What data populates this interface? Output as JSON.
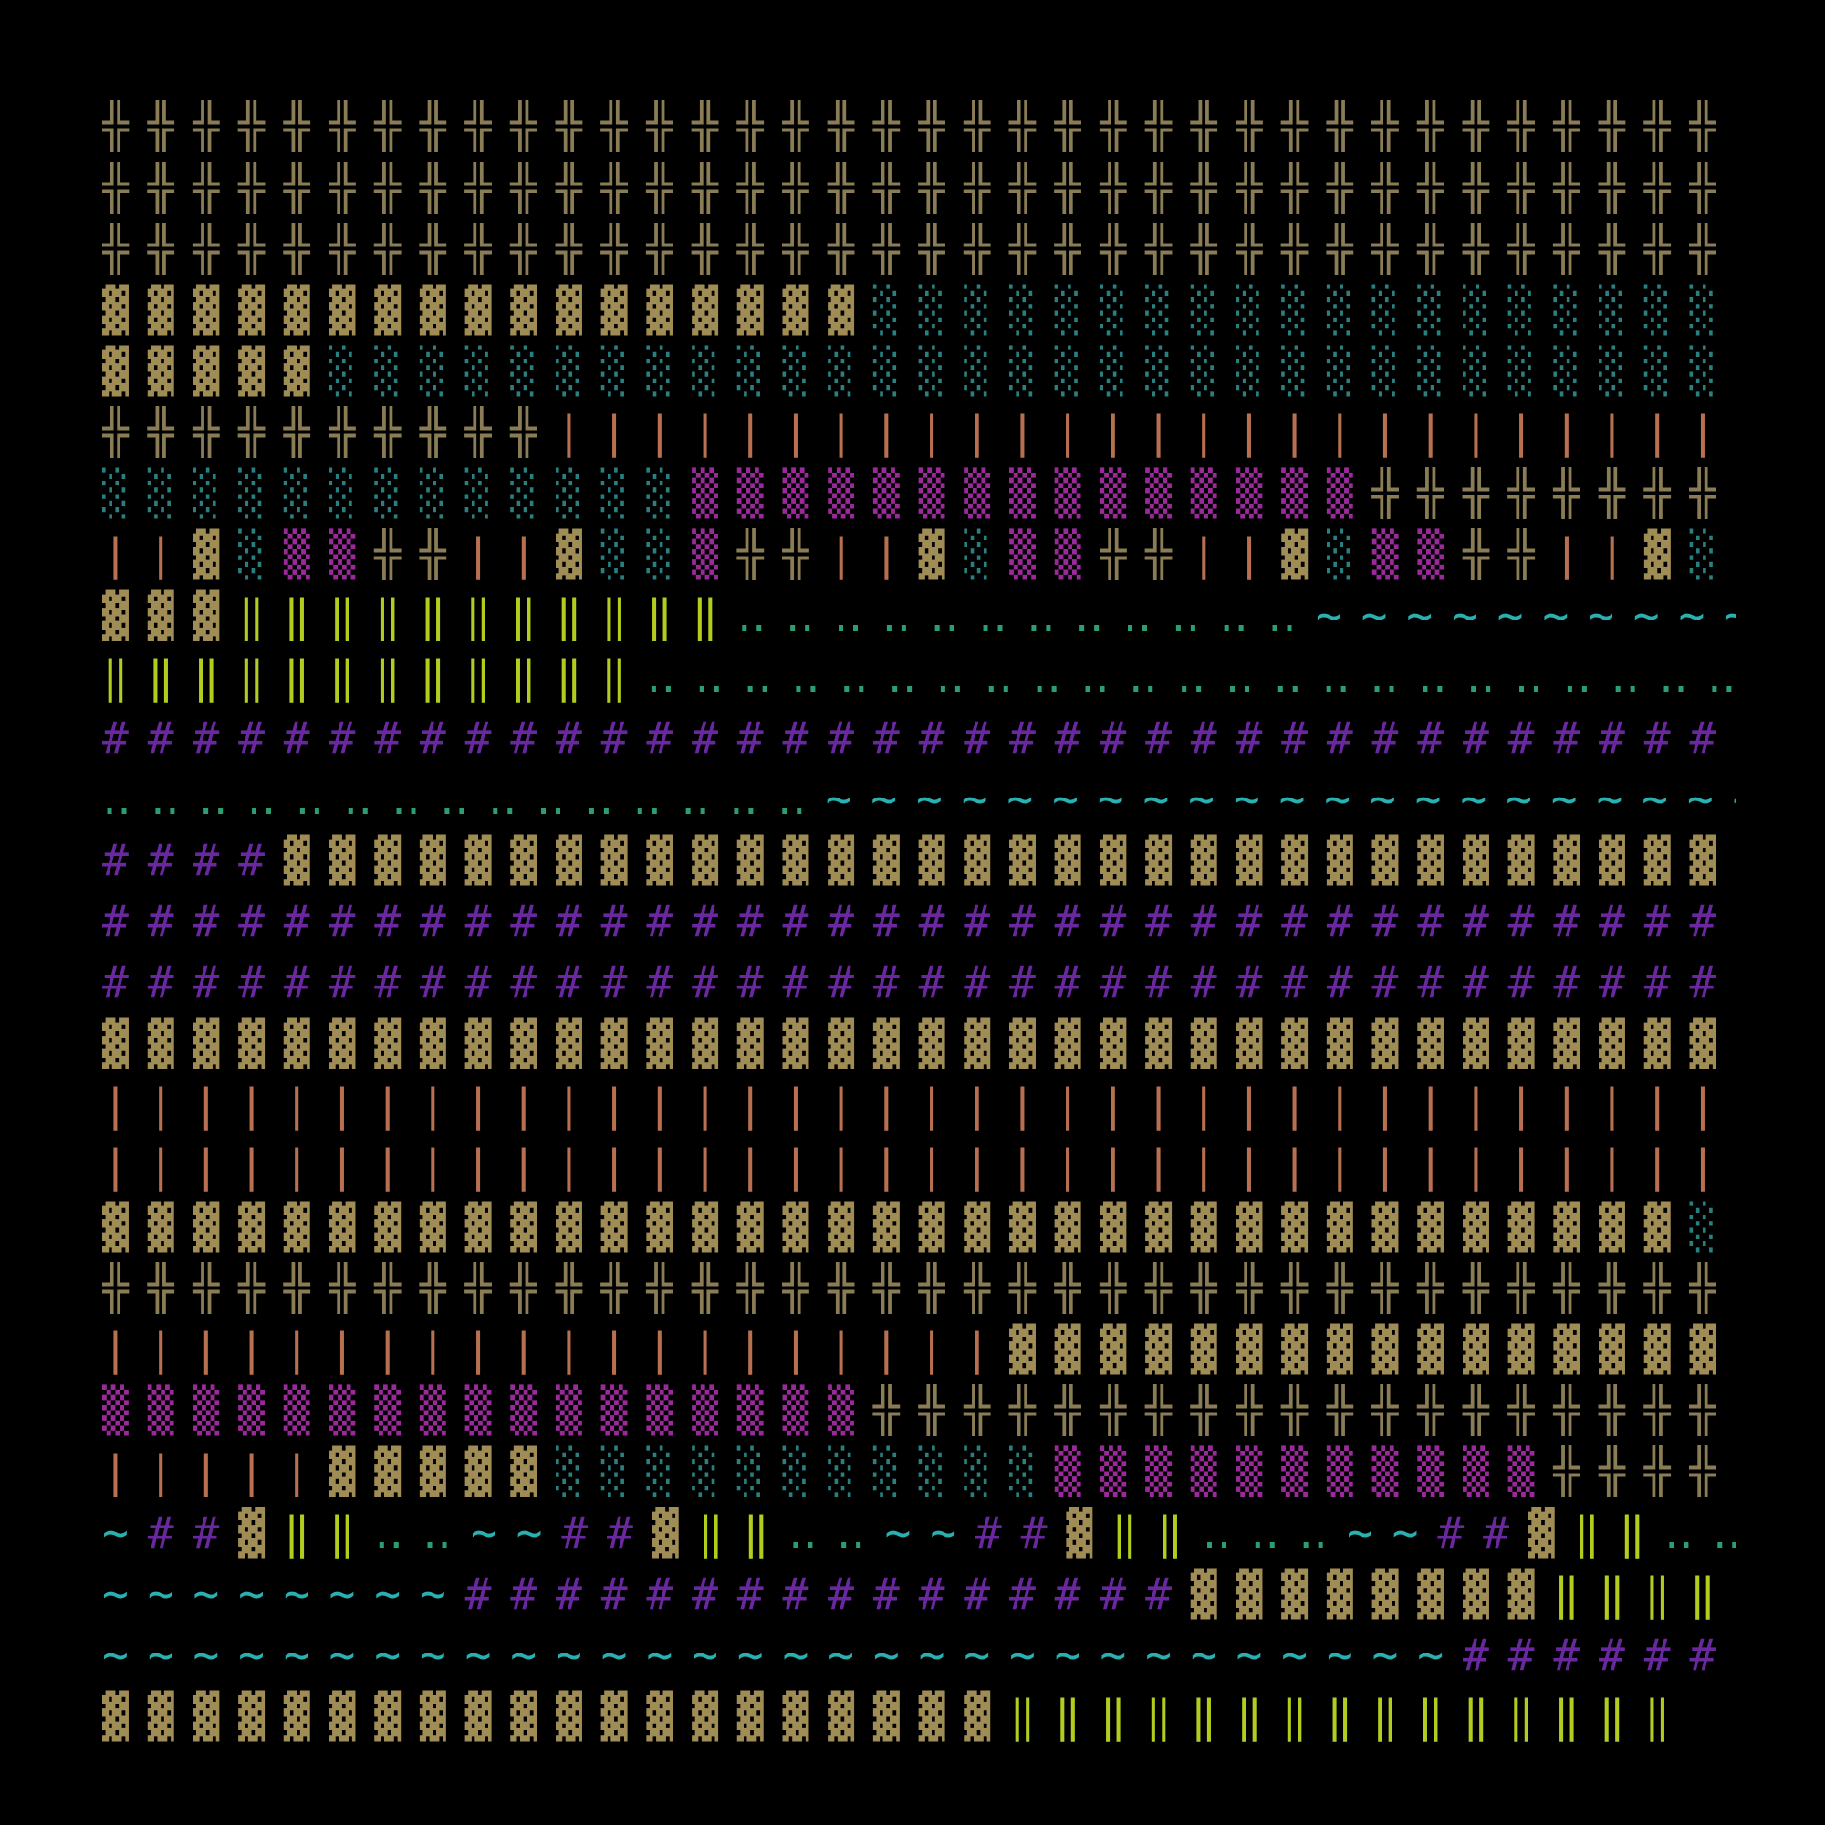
{
  "palette": {
    "╬": "#8a7d55",
    "▓": "#a08c55",
    "░": "#2a8080",
    "▒": "#9a2a9a",
    "|": "#b87050",
    "‖": "#b4cc1e",
    "‥": "#2aa070",
    "#": "#6a28a0",
    "~": "#2ab0b0"
  },
  "rows": [
    [
      "╬╬╬╬╬╬╬╬╬╬╬╬╬╬╬╬╬╬╬╬╬╬╬╬╬╬╬╬╬╬╬╬╬╬╬╬"
    ],
    [
      "╬╬╬╬╬╬╬╬╬╬╬╬╬╬╬╬╬╬╬╬╬╬╬╬╬╬╬╬╬╬╬╬╬╬╬╬"
    ],
    [
      "╬╬╬╬╬╬╬╬╬╬╬╬╬╬╬╬╬╬╬╬╬╬╬╬╬╬╬╬╬╬╬╬╬╬╬╬"
    ],
    [
      "▓▓▓▓▓▓▓▓▓▓▓▓▓▓▓▓▓",
      "░░░░░░░░░░░░░░░░░░░"
    ],
    [
      "▓▓▓▓▓",
      "░░░░░░░░░░░░░░░░░░░░░░░░░░░░░░░"
    ],
    [
      "╬╬╬╬╬╬╬╬╬╬",
      "||||||||||||||||||||||||||"
    ],
    [
      "░░░░░░░░░░░░░",
      "▒▒▒▒▒▒▒▒▒▒▒▒▒▒▒",
      "╬╬╬╬╬╬╬╬"
    ],
    [
      "||",
      "▓",
      "░",
      "▒▒",
      "╬╬",
      "||",
      "▓",
      "░░",
      "▒",
      "╬╬",
      "||",
      "▓",
      "░",
      "▒▒",
      "╬╬",
      "||",
      "▓",
      "░",
      "▒▒",
      "╬╬",
      "||",
      "▓",
      "░"
    ],
    [
      "▓▓▓",
      "‖‖‖‖‖‖‖‖‖‖‖",
      "‥‥‥‥‥‥‥‥‥‥‥‥",
      "~~~~~~~~~~"
    ],
    [
      "‖‖‖‖‖‖‖‖‖‖‖‖",
      "‥‥‥‥‥‥‥‥‥‥‥‥‥‥‥‥‥‥‥‥‥‥‥‥"
    ],
    [
      "####################################"
    ],
    [
      "‥‥‥‥‥‥‥‥‥‥‥‥‥‥‥",
      "~~~~~~~~~~~~~~~~~~~~~"
    ],
    [
      "####",
      "▓▓▓▓▓▓▓▓▓▓▓▓▓▓▓▓▓▓▓▓▓▓▓▓▓▓▓▓▓▓▓▓"
    ],
    [
      "####################################"
    ],
    [
      "####################################"
    ],
    [
      "▓▓▓▓▓▓▓▓▓▓▓▓▓▓▓▓▓▓▓▓▓▓▓▓▓▓▓▓▓▓▓▓▓▓▓▓"
    ],
    [
      "||||||||||||||||||||||||||||||||||||"
    ],
    [
      "||||||||||||||||||||||||||||||||||||"
    ],
    [
      "▓▓▓▓▓▓▓▓▓▓▓▓▓▓▓▓▓▓▓▓▓▓▓▓▓▓▓▓▓▓▓▓▓▓▓",
      "░"
    ],
    [
      "╬╬╬╬╬╬╬╬╬╬╬╬╬╬╬╬╬╬╬╬╬╬╬╬╬╬╬╬╬╬╬╬╬╬╬╬"
    ],
    [
      "||||||||||||||||||||",
      "▓▓▓▓▓▓▓▓▓▓▓▓▓▓▓▓"
    ],
    [
      "▒▒▒▒▒▒▒▒▒▒▒▒▒▒▒▒▒",
      "╬╬╬╬╬╬╬╬╬╬╬╬╬╬╬╬╬╬╬"
    ],
    [
      "|||||",
      "▓▓▓▓▓",
      "░░░░░░░░░░░",
      "▒▒▒▒▒▒▒▒▒▒▒",
      "╬╬╬╬"
    ],
    [
      "~",
      "##",
      "▓",
      "‖‖",
      "‥‥",
      "~~",
      "##",
      "▓",
      "‖‖",
      "‥‥",
      "~~",
      "##",
      "▓",
      "‖‖",
      "‥‥‥",
      "~~",
      "##",
      "▓",
      "‖‖",
      "‥‥"
    ],
    [
      "~~~~~~~~",
      "################",
      "▓▓▓▓▓▓▓▓",
      "‖‖‖‖"
    ],
    [
      "~~~~~~~~~~~~~~~~~~~~~~~~~~~~~~",
      "######"
    ],
    [
      "▓▓▓▓▓▓▓▓▓▓▓▓▓▓▓▓▓▓▓▓",
      "‖‖‖‖‖‖‖‖‖‖‖‖‖‖‖"
    ]
  ]
}
